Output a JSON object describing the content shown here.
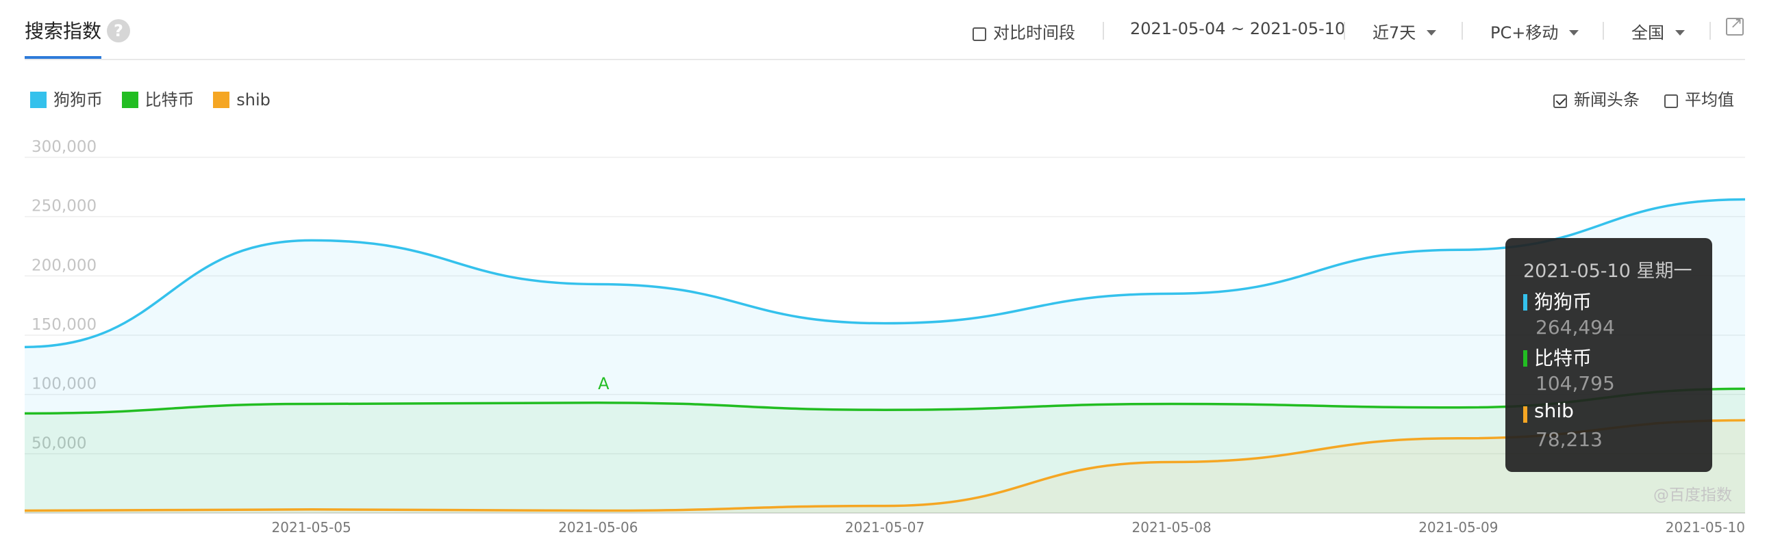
{
  "header": {
    "title": "搜索指数",
    "help_icon": "question-mark-icon",
    "compare_label": "对比时间段",
    "date_range": "2021-05-04 ~ 2021-05-10",
    "period": "近7天",
    "device": "PC+移动",
    "region": "全国",
    "external_icon": "external-link-icon"
  },
  "legend": [
    {
      "name": "狗狗币",
      "color": "#34c1ec"
    },
    {
      "name": "比特币",
      "color": "#22bd22"
    },
    {
      "name": "shib",
      "color": "#f5a623"
    }
  ],
  "options": {
    "news_label": "新闻头条",
    "news_checked": true,
    "avg_label": "平均值",
    "avg_checked": false
  },
  "chart_data": {
    "type": "area",
    "x": [
      "2021-05-04",
      "2021-05-05",
      "2021-05-06",
      "2021-05-07",
      "2021-05-08",
      "2021-05-09",
      "2021-05-10"
    ],
    "x_tick_labels": [
      "2021-05-05",
      "2021-05-06",
      "2021-05-07",
      "2021-05-08",
      "2021-05-09",
      "2021-05-10"
    ],
    "ylim": [
      0,
      300000
    ],
    "y_ticks": [
      "300,000",
      "250,000",
      "200,000",
      "150,000",
      "100,000",
      "50,000"
    ],
    "grid": true,
    "series": [
      {
        "name": "狗狗币",
        "color": "#34c1ec",
        "values": [
          140000,
          230000,
          193000,
          160000,
          185000,
          222000,
          264494
        ]
      },
      {
        "name": "比特币",
        "color": "#22bd22",
        "values": [
          84000,
          92000,
          93000,
          87000,
          92000,
          89000,
          104795
        ]
      },
      {
        "name": "shib",
        "color": "#f5a623",
        "values": [
          2000,
          3000,
          2000,
          6000,
          43000,
          63000,
          78213
        ]
      }
    ],
    "annotations": [
      {
        "label": "A",
        "x": "2021-05-06",
        "color": "#22bd22"
      }
    ]
  },
  "tooltip": {
    "date": "2021-05-10 星期一",
    "rows": [
      {
        "name": "狗狗币",
        "value": "264,494",
        "color": "#34c1ec"
      },
      {
        "name": "比特币",
        "value": "104,795",
        "color": "#22bd22"
      },
      {
        "name": "shib",
        "value": "78,213",
        "color": "#f5a623"
      }
    ]
  },
  "watermark": "@百度指数"
}
